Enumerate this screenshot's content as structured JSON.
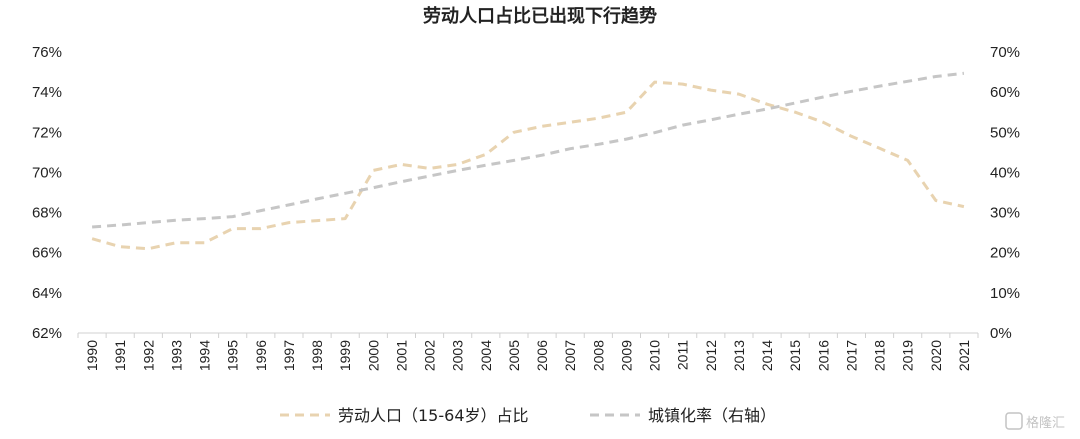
{
  "chart_data": {
    "type": "line",
    "title": "劳动人口占比已出现下行趋势",
    "x": [
      1990,
      1991,
      1992,
      1993,
      1994,
      1995,
      1996,
      1997,
      1998,
      1999,
      2000,
      2001,
      2002,
      2003,
      2004,
      2005,
      2006,
      2007,
      2008,
      2009,
      2010,
      2011,
      2012,
      2013,
      2014,
      2015,
      2016,
      2017,
      2018,
      2019,
      2020,
      2021
    ],
    "x_tick_labels": [
      "1990",
      "1991",
      "1992",
      "1993",
      "1994",
      "1995",
      "1996",
      "1997",
      "1998",
      "1999",
      "2000",
      "2001",
      "2002",
      "2003",
      "2004",
      "2005",
      "2006",
      "2007",
      "2008",
      "2009",
      "2010",
      "2011",
      "2012",
      "2013",
      "2014",
      "2015",
      "2016",
      "2017",
      "2018",
      "2019",
      "2020",
      "2021"
    ],
    "y_left": {
      "lim": [
        62,
        76
      ],
      "ticks": [
        62,
        64,
        66,
        68,
        70,
        72,
        74,
        76
      ],
      "tick_labels": [
        "62%",
        "64%",
        "66%",
        "68%",
        "70%",
        "72%",
        "74%",
        "76%"
      ]
    },
    "y_right": {
      "lim": [
        0,
        70
      ],
      "ticks": [
        0,
        10,
        20,
        30,
        40,
        50,
        60,
        70
      ],
      "tick_labels": [
        "0%",
        "10%",
        "20%",
        "30%",
        "40%",
        "50%",
        "60%",
        "70%"
      ]
    },
    "series": [
      {
        "name": "劳动人口（15-64岁）占比",
        "axis": "left",
        "color": "#e8d3b0",
        "dash": "dashed",
        "values": [
          66.7,
          66.3,
          66.2,
          66.5,
          66.5,
          67.2,
          67.2,
          67.5,
          67.6,
          67.7,
          70.1,
          70.4,
          70.2,
          70.4,
          70.9,
          72.0,
          72.3,
          72.5,
          72.7,
          73.0,
          74.5,
          74.4,
          74.1,
          73.9,
          73.4,
          73.0,
          72.5,
          71.8,
          71.2,
          70.6,
          68.6,
          68.3
        ]
      },
      {
        "name": "城镇化率（右轴）",
        "axis": "right",
        "color": "#c6c6c6",
        "dash": "dashed",
        "values": [
          26.4,
          26.9,
          27.5,
          28.1,
          28.5,
          29.0,
          30.5,
          31.9,
          33.4,
          34.8,
          36.2,
          37.7,
          39.1,
          40.5,
          41.8,
          43.0,
          44.3,
          45.9,
          47.0,
          48.3,
          49.9,
          51.8,
          53.1,
          54.5,
          55.8,
          57.3,
          58.8,
          60.2,
          61.5,
          62.7,
          63.9,
          64.7
        ]
      }
    ],
    "legend": "bottom",
    "grid": false
  },
  "watermark": "格隆汇"
}
